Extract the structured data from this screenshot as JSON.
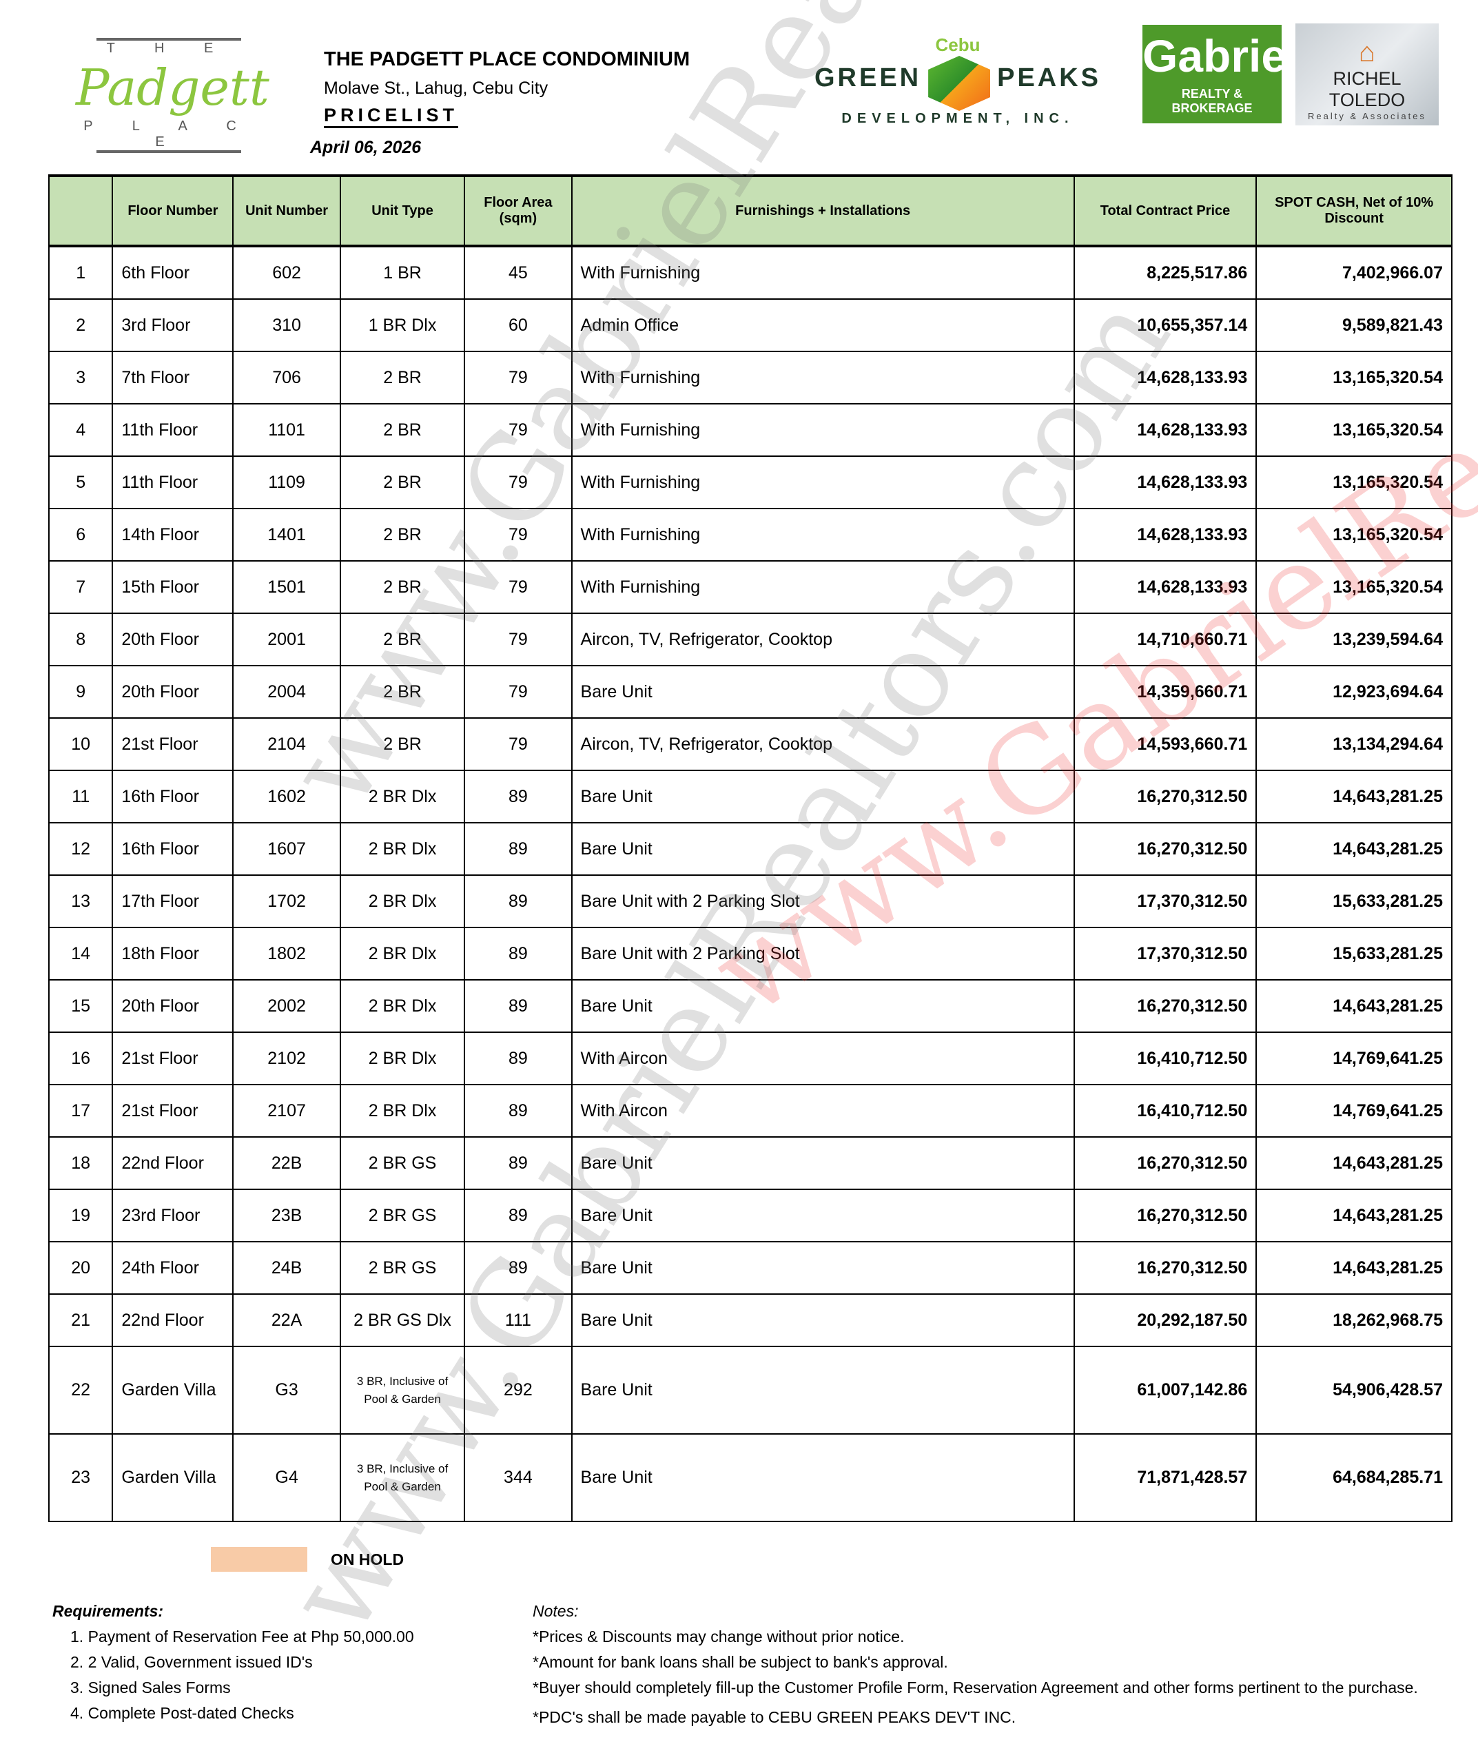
{
  "header": {
    "title": "THE PADGETT PLACE CONDOMINIUM",
    "address": "Molave St., Lahug, Cebu City",
    "doc_label": "PRICELIST",
    "date": "April 06, 2026"
  },
  "logos": {
    "padgett": {
      "top": "T H E",
      "script": "Padgett",
      "bottom": "P L A C E"
    },
    "cgp": {
      "cebu": "Cebu",
      "left": "GREEN",
      "right": "PEAKS",
      "sub": "DEVELOPMENT, INC."
    },
    "gabriel": {
      "name": "Gabriel",
      "sub": "REALTY & BROKERAGE",
      "color": "#4e9a2a"
    },
    "richel": {
      "name": "RICHEL TOLEDO",
      "sub": "Realty & Associates"
    }
  },
  "watermark": "www.GabrielRealtors.com",
  "table": {
    "header_color": "#c6e0b4",
    "columns": [
      "",
      "Floor Number",
      "Unit Number",
      "Unit Type",
      "Floor Area (sqm)",
      "Furnishings + Installations",
      "Total Contract Price",
      "SPOT CASH, Net of 10% Discount"
    ],
    "rows": [
      [
        "1",
        "6th Floor",
        "602",
        "1 BR",
        "45",
        "With Furnishing",
        "8,225,517.86",
        "7,402,966.07"
      ],
      [
        "2",
        "3rd Floor",
        "310",
        "1 BR Dlx",
        "60",
        "Admin Office",
        "10,655,357.14",
        "9,589,821.43"
      ],
      [
        "3",
        "7th Floor",
        "706",
        "2 BR",
        "79",
        "With Furnishing",
        "14,628,133.93",
        "13,165,320.54"
      ],
      [
        "4",
        "11th Floor",
        "1101",
        "2 BR",
        "79",
        "With Furnishing",
        "14,628,133.93",
        "13,165,320.54"
      ],
      [
        "5",
        "11th Floor",
        "1109",
        "2 BR",
        "79",
        "With Furnishing",
        "14,628,133.93",
        "13,165,320.54"
      ],
      [
        "6",
        "14th Floor",
        "1401",
        "2 BR",
        "79",
        "With Furnishing",
        "14,628,133.93",
        "13,165,320.54"
      ],
      [
        "7",
        "15th Floor",
        "1501",
        "2 BR",
        "79",
        "With Furnishing",
        "14,628,133.93",
        "13,165,320.54"
      ],
      [
        "8",
        "20th Floor",
        "2001",
        "2 BR",
        "79",
        "Aircon, TV, Refrigerator, Cooktop",
        "14,710,660.71",
        "13,239,594.64"
      ],
      [
        "9",
        "20th Floor",
        "2004",
        "2 BR",
        "79",
        "Bare Unit",
        "14,359,660.71",
        "12,923,694.64"
      ],
      [
        "10",
        "21st Floor",
        "2104",
        "2 BR",
        "79",
        "Aircon, TV, Refrigerator, Cooktop",
        "14,593,660.71",
        "13,134,294.64"
      ],
      [
        "11",
        "16th Floor",
        "1602",
        "2 BR Dlx",
        "89",
        "Bare Unit",
        "16,270,312.50",
        "14,643,281.25"
      ],
      [
        "12",
        "16th Floor",
        "1607",
        "2 BR Dlx",
        "89",
        "Bare Unit",
        "16,270,312.50",
        "14,643,281.25"
      ],
      [
        "13",
        "17th Floor",
        "1702",
        "2 BR Dlx",
        "89",
        "Bare Unit with 2 Parking Slot",
        "17,370,312.50",
        "15,633,281.25"
      ],
      [
        "14",
        "18th Floor",
        "1802",
        "2 BR Dlx",
        "89",
        "Bare Unit with 2 Parking Slot",
        "17,370,312.50",
        "15,633,281.25"
      ],
      [
        "15",
        "20th Floor",
        "2002",
        "2 BR Dlx",
        "89",
        "Bare Unit",
        "16,270,312.50",
        "14,643,281.25"
      ],
      [
        "16",
        "21st Floor",
        "2102",
        "2 BR Dlx",
        "89",
        "With Aircon",
        "16,410,712.50",
        "14,769,641.25"
      ],
      [
        "17",
        "21st Floor",
        "2107",
        "2 BR Dlx",
        "89",
        "With Aircon",
        "16,410,712.50",
        "14,769,641.25"
      ],
      [
        "18",
        "22nd Floor",
        "22B",
        "2 BR GS",
        "89",
        "Bare Unit",
        "16,270,312.50",
        "14,643,281.25"
      ],
      [
        "19",
        "23rd Floor",
        "23B",
        "2 BR GS",
        "89",
        "Bare Unit",
        "16,270,312.50",
        "14,643,281.25"
      ],
      [
        "20",
        "24th Floor",
        "24B",
        "2 BR GS",
        "89",
        "Bare Unit",
        "16,270,312.50",
        "14,643,281.25"
      ],
      [
        "21",
        "22nd Floor",
        "22A",
        "2 BR GS Dlx",
        "111",
        "Bare Unit",
        "20,292,187.50",
        "18,262,968.75"
      ],
      [
        "22",
        "Garden Villa",
        "G3",
        "3 BR, Inclusive of Pool & Garden",
        "292",
        "Bare Unit",
        "61,007,142.86",
        "54,906,428.57"
      ],
      [
        "23",
        "Garden Villa",
        "G4",
        "3 BR, Inclusive of Pool & Garden",
        "344",
        "Bare Unit",
        "71,871,428.57",
        "64,684,285.71"
      ]
    ]
  },
  "legend": {
    "label": "ON HOLD",
    "color": "#f8cba7"
  },
  "requirements": {
    "heading": "Requirements:",
    "items": [
      "1. Payment of Reservation Fee at Php 50,000.00",
      "2. 2 Valid, Government issued ID's",
      "3. Signed Sales Forms",
      "4. Complete Post-dated Checks"
    ]
  },
  "notes": {
    "heading": "Notes:",
    "items": [
      "*Prices & Discounts may change without prior notice.",
      "*Amount for bank loans shall be subject to bank's approval.",
      "*Buyer should completely fill-up the Customer Profile Form, Reservation Agreement and other forms pertinent to the purchase.",
      "*PDC's shall be made payable to CEBU GREEN PEAKS DEV'T INC."
    ]
  }
}
